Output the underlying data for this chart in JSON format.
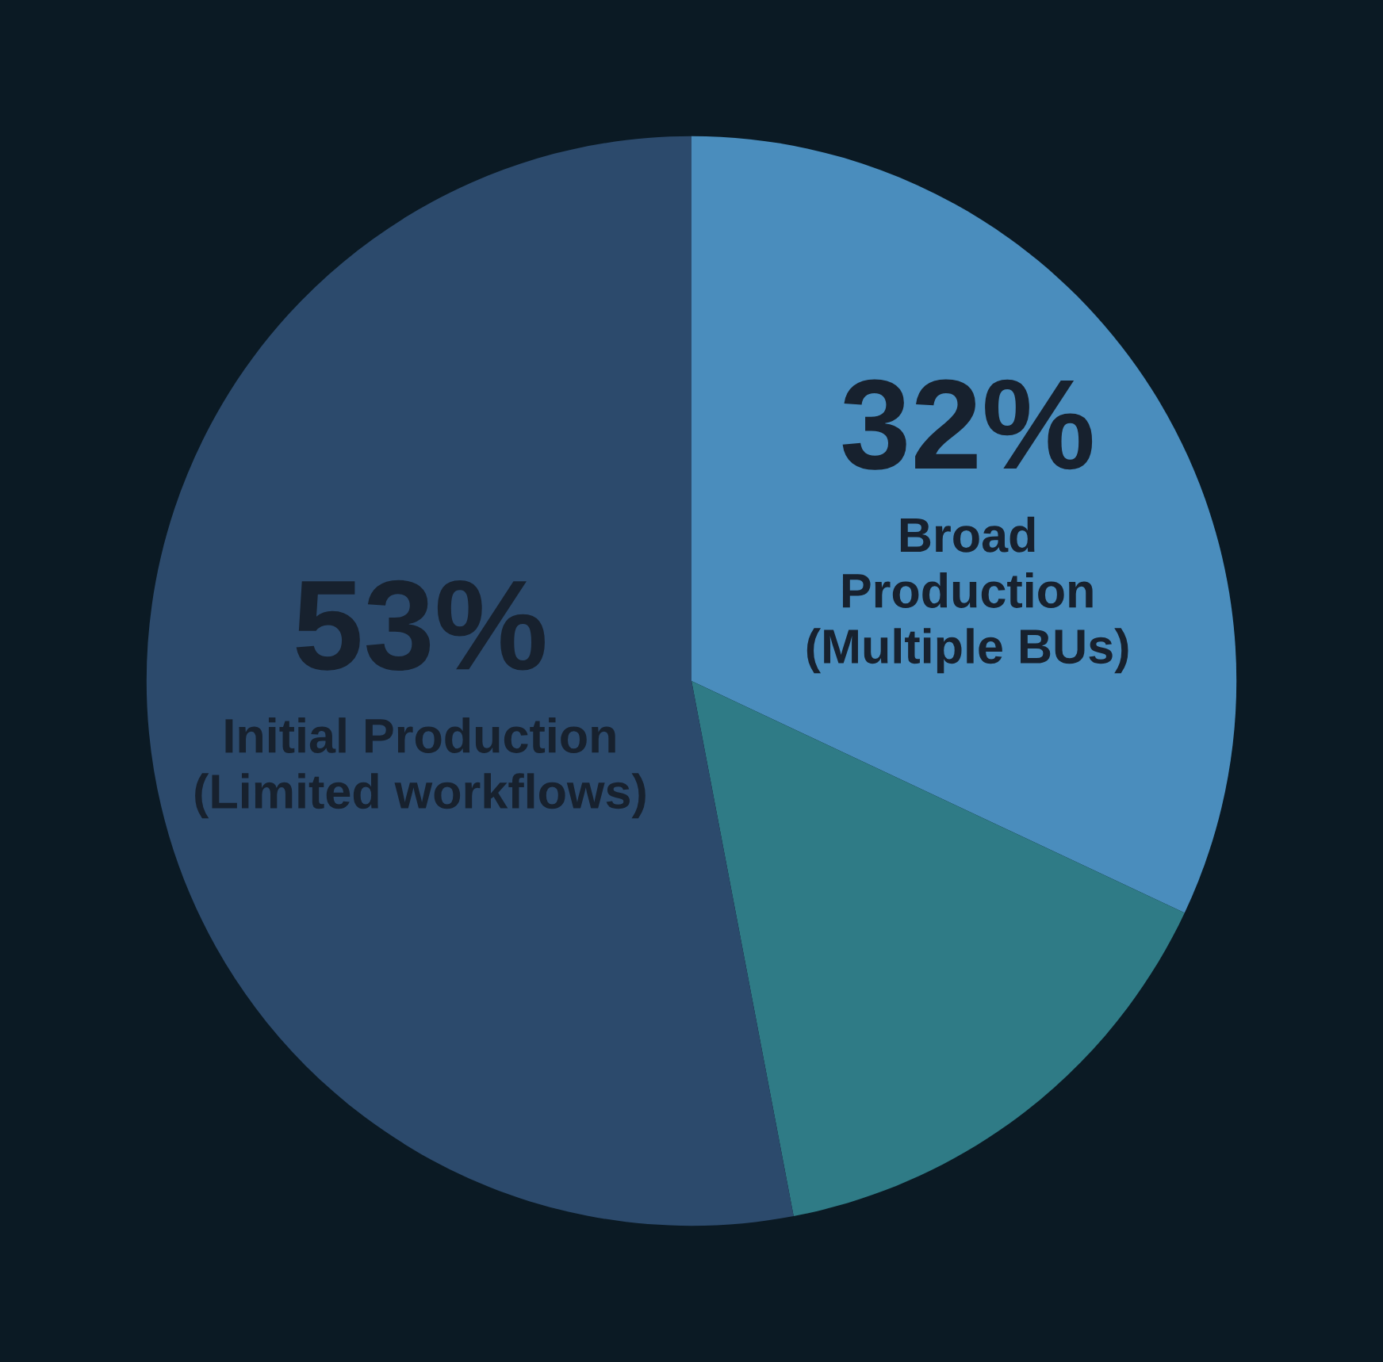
{
  "chart_data": {
    "type": "pie",
    "categories": [
      "Initial Production\n(Limited workflows)",
      "Broad\nProduction\n(Multiple BUs)",
      null
    ],
    "values": [
      53,
      32,
      15
    ],
    "value_labels": [
      "53%",
      "32%",
      null
    ],
    "colors": [
      "#2c4a6c",
      "#4a8dbd",
      "#2f7b86"
    ]
  }
}
